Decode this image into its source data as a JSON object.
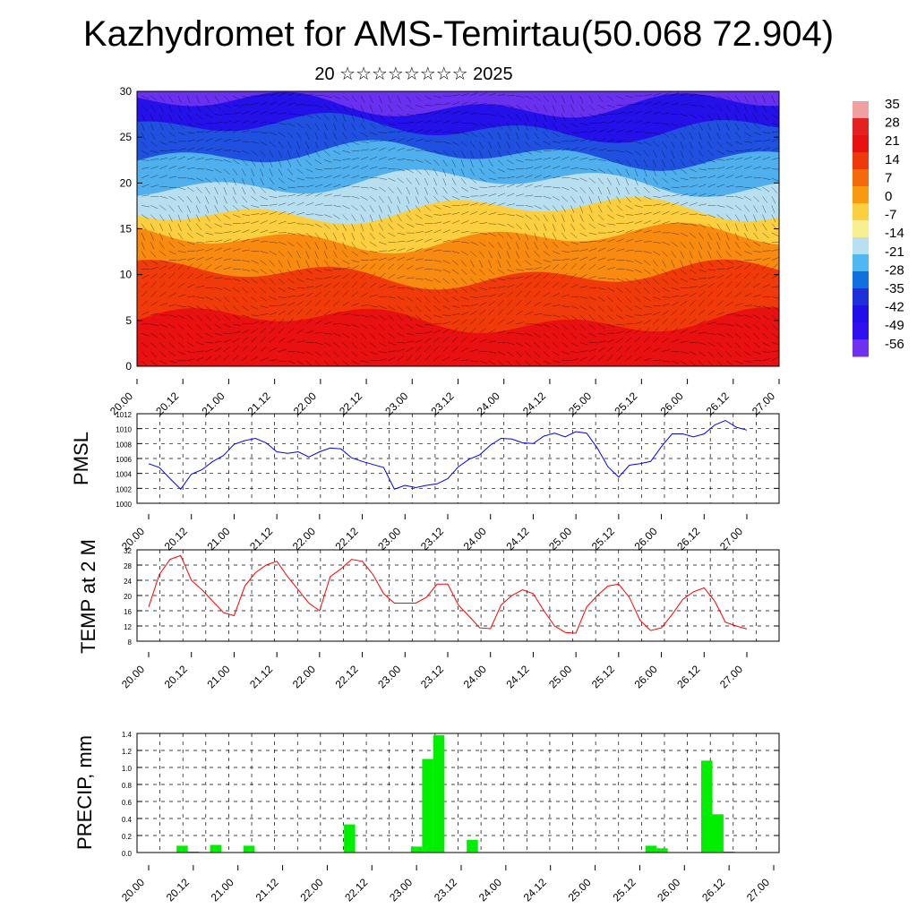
{
  "title": "Kazhydromet for AMS-Temirtau(50.068 72.904)",
  "subtitle": "20 ☆☆☆☆☆☆☆☆ 2025",
  "x_tick_labels": [
    "20.00",
    "20.12",
    "21.00",
    "21.12",
    "22.00",
    "22.12",
    "23.00",
    "23.12",
    "24.00",
    "24.12",
    "25.00",
    "25.12",
    "26.00",
    "26.12",
    "27.00"
  ],
  "colors": {
    "pmsl_line": "#0000ff",
    "temp_line": "#ff0000",
    "precip_bar": "#00ee00",
    "grid": "#000000"
  },
  "chart_data": [
    {
      "type": "heatmap",
      "title": "",
      "ylim": [
        0,
        30
      ],
      "yticks": [
        0,
        5,
        10,
        15,
        20,
        25,
        30
      ],
      "colorbar": {
        "labels": [
          "35",
          "28",
          "21",
          "14",
          "7",
          "0",
          "-7",
          "-14",
          "-21",
          "-28",
          "-35",
          "-42",
          "-49",
          "-56"
        ],
        "colors_top_to_bottom": [
          "#f0a0a0",
          "#e42020",
          "#e81010",
          "#ee3a0a",
          "#f46a0a",
          "#f89a10",
          "#fbd040",
          "#f8f090",
          "#b8e0f0",
          "#50b8f0",
          "#1070e0",
          "#2030d8",
          "#2010e8",
          "#3010f0",
          "#7030f0"
        ]
      },
      "layers_bottom_to_top": [
        {
          "level": 0,
          "color": "#e81010"
        },
        {
          "level": 5,
          "color": "#f03a0a"
        },
        {
          "level": 10,
          "color": "#f88a10"
        },
        {
          "level": 14,
          "color": "#fbcf40"
        },
        {
          "level": 17,
          "color": "#b8dff0"
        },
        {
          "level": 20,
          "color": "#50b0ee"
        },
        {
          "level": 23,
          "color": "#2050e0"
        },
        {
          "level": 26,
          "color": "#2410e8"
        },
        {
          "level": 28.5,
          "color": "#6a30f0"
        }
      ],
      "wind_barbs": true
    },
    {
      "type": "line",
      "ylabel": "PMSL",
      "ylim": [
        1000,
        1012
      ],
      "yticks": [
        1000,
        1002,
        1004,
        1006,
        1008,
        1010,
        1012
      ],
      "series": [
        {
          "values": [
            1005.3,
            1004.8,
            1003.3,
            1001.9,
            1003.9,
            1004.5,
            1005.6,
            1006.4,
            1007.9,
            1008.4,
            1008.7,
            1008.1,
            1006.9,
            1006.7,
            1006.9,
            1006.2,
            1006.9,
            1007.4,
            1007.3,
            1006.1,
            1005.6,
            1005.2,
            1004.8,
            1001.9,
            1002.4,
            1002.1,
            1002.4,
            1002.6,
            1003.3,
            1004.9,
            1005.9,
            1006.5,
            1007.8,
            1008.7,
            1008.6,
            1008.1,
            1008.0,
            1009.0,
            1009.4,
            1008.9,
            1009.6,
            1009.4,
            1007.4,
            1004.9,
            1003.5,
            1005.1,
            1005.3,
            1005.6,
            1007.6,
            1009.3,
            1009.3,
            1008.9,
            1009.3,
            1010.5,
            1011.1,
            1010.2,
            1009.8
          ]
        }
      ]
    },
    {
      "type": "line",
      "ylabel": "TEMP at 2 M",
      "ylim": [
        8,
        32
      ],
      "yticks": [
        8,
        12,
        16,
        20,
        24,
        28,
        32
      ],
      "series": [
        {
          "values": [
            17,
            25.5,
            29.5,
            30.5,
            24,
            21.5,
            18.5,
            15.5,
            14.7,
            22.5,
            26,
            28,
            29,
            25,
            21.5,
            18,
            16,
            25,
            27,
            29.5,
            29,
            25.5,
            20.5,
            18,
            18,
            18,
            19.5,
            23,
            23,
            17.5,
            14.5,
            11.5,
            11.3,
            17.5,
            20,
            21.5,
            20.5,
            16,
            12,
            10.3,
            10.1,
            17,
            20,
            22.5,
            23,
            19.5,
            13.5,
            10.8,
            11.5,
            15,
            19,
            21,
            22,
            18.5,
            13,
            12,
            11.2
          ]
        }
      ]
    },
    {
      "type": "bar",
      "ylabel": "PRECIP, mm",
      "ylim": [
        0,
        1.4
      ],
      "yticks": [
        0.0,
        0.2,
        0.4,
        0.6,
        0.8,
        1.0,
        1.2,
        1.4
      ],
      "values": [
        0,
        0,
        0,
        0.08,
        0.01,
        0,
        0.09,
        0,
        0,
        0.08,
        0,
        0,
        0,
        0,
        0,
        0,
        0,
        0,
        0.33,
        0,
        0,
        0,
        0,
        0,
        0.07,
        1.1,
        1.38,
        0,
        0,
        0.15,
        0,
        0,
        0,
        0,
        0,
        0,
        0,
        0,
        0,
        0,
        0,
        0,
        0,
        0,
        0,
        0.08,
        0.05,
        0,
        0,
        0,
        1.08,
        0.45,
        0.01,
        0,
        0,
        0,
        0
      ]
    }
  ]
}
